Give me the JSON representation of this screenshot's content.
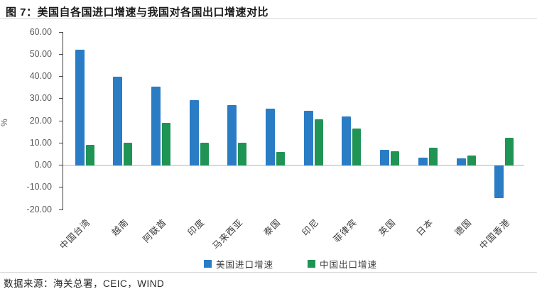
{
  "header": {
    "title": "图 7：美国自各国进口增速与我国对各国出口增速对比"
  },
  "footer": {
    "source": "数据来源：海关总署，CEIC，WIND"
  },
  "chart_data": {
    "type": "bar",
    "title": "图 7：美国自各国进口增速与我国对各国出口增速对比",
    "xlabel": "",
    "ylabel": "%",
    "ylim": [
      -20,
      60
    ],
    "grid": false,
    "legend_position": "bottom",
    "categories": [
      "中国台湾",
      "越南",
      "阿联酋",
      "印度",
      "马来西亚",
      "泰国",
      "印尼",
      "菲律宾",
      "英国",
      "日本",
      "德国",
      "中国香港"
    ],
    "series": [
      {
        "name": "美国进口增速",
        "color": "#2A7CC5",
        "values": [
          52.0,
          39.7,
          35.3,
          29.3,
          27.0,
          25.5,
          24.5,
          21.8,
          7.0,
          3.3,
          3.2,
          -14.8
        ]
      },
      {
        "name": "中国出口增速",
        "color": "#1F9454",
        "values": [
          9.0,
          10.0,
          19.0,
          10.0,
          10.0,
          6.0,
          20.8,
          16.5,
          6.3,
          7.8,
          4.2,
          12.3
        ]
      }
    ],
    "y_ticks": [
      {
        "value": 60,
        "label": "60.00"
      },
      {
        "value": 50,
        "label": "50.00"
      },
      {
        "value": 40,
        "label": "40.00"
      },
      {
        "value": 30,
        "label": "30.00"
      },
      {
        "value": 20,
        "label": "20.00"
      },
      {
        "value": 10,
        "label": "10.00"
      },
      {
        "value": 0,
        "label": "0.00"
      },
      {
        "value": -10,
        "label": "-10.00"
      },
      {
        "value": -20,
        "label": "-20.00"
      }
    ]
  }
}
